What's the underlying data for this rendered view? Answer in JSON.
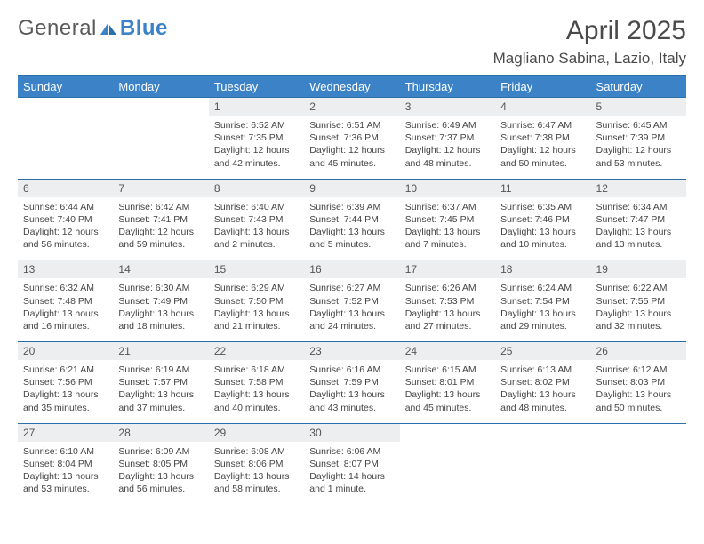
{
  "logo": {
    "text1": "General",
    "text2": "Blue"
  },
  "title": "April 2025",
  "location": "Magliano Sabina, Lazio, Italy",
  "colors": {
    "header_bg": "#3b82c7",
    "header_text": "#ffffff",
    "border": "#2b6fa8",
    "daynum_bg": "#eceeef",
    "text": "#444444",
    "title_text": "#4a4a4a"
  },
  "typography": {
    "title_size": 30,
    "location_size": 17,
    "dayhead_size": 13,
    "daynum_size": 12,
    "body_size": 10.5
  },
  "day_names": [
    "Sunday",
    "Monday",
    "Tuesday",
    "Wednesday",
    "Thursday",
    "Friday",
    "Saturday"
  ],
  "weeks": [
    [
      {
        "n": "",
        "sunrise": "",
        "sunset": "",
        "daylight": ""
      },
      {
        "n": "",
        "sunrise": "",
        "sunset": "",
        "daylight": ""
      },
      {
        "n": "1",
        "sunrise": "Sunrise: 6:52 AM",
        "sunset": "Sunset: 7:35 PM",
        "daylight": "Daylight: 12 hours and 42 minutes."
      },
      {
        "n": "2",
        "sunrise": "Sunrise: 6:51 AM",
        "sunset": "Sunset: 7:36 PM",
        "daylight": "Daylight: 12 hours and 45 minutes."
      },
      {
        "n": "3",
        "sunrise": "Sunrise: 6:49 AM",
        "sunset": "Sunset: 7:37 PM",
        "daylight": "Daylight: 12 hours and 48 minutes."
      },
      {
        "n": "4",
        "sunrise": "Sunrise: 6:47 AM",
        "sunset": "Sunset: 7:38 PM",
        "daylight": "Daylight: 12 hours and 50 minutes."
      },
      {
        "n": "5",
        "sunrise": "Sunrise: 6:45 AM",
        "sunset": "Sunset: 7:39 PM",
        "daylight": "Daylight: 12 hours and 53 minutes."
      }
    ],
    [
      {
        "n": "6",
        "sunrise": "Sunrise: 6:44 AM",
        "sunset": "Sunset: 7:40 PM",
        "daylight": "Daylight: 12 hours and 56 minutes."
      },
      {
        "n": "7",
        "sunrise": "Sunrise: 6:42 AM",
        "sunset": "Sunset: 7:41 PM",
        "daylight": "Daylight: 12 hours and 59 minutes."
      },
      {
        "n": "8",
        "sunrise": "Sunrise: 6:40 AM",
        "sunset": "Sunset: 7:43 PM",
        "daylight": "Daylight: 13 hours and 2 minutes."
      },
      {
        "n": "9",
        "sunrise": "Sunrise: 6:39 AM",
        "sunset": "Sunset: 7:44 PM",
        "daylight": "Daylight: 13 hours and 5 minutes."
      },
      {
        "n": "10",
        "sunrise": "Sunrise: 6:37 AM",
        "sunset": "Sunset: 7:45 PM",
        "daylight": "Daylight: 13 hours and 7 minutes."
      },
      {
        "n": "11",
        "sunrise": "Sunrise: 6:35 AM",
        "sunset": "Sunset: 7:46 PM",
        "daylight": "Daylight: 13 hours and 10 minutes."
      },
      {
        "n": "12",
        "sunrise": "Sunrise: 6:34 AM",
        "sunset": "Sunset: 7:47 PM",
        "daylight": "Daylight: 13 hours and 13 minutes."
      }
    ],
    [
      {
        "n": "13",
        "sunrise": "Sunrise: 6:32 AM",
        "sunset": "Sunset: 7:48 PM",
        "daylight": "Daylight: 13 hours and 16 minutes."
      },
      {
        "n": "14",
        "sunrise": "Sunrise: 6:30 AM",
        "sunset": "Sunset: 7:49 PM",
        "daylight": "Daylight: 13 hours and 18 minutes."
      },
      {
        "n": "15",
        "sunrise": "Sunrise: 6:29 AM",
        "sunset": "Sunset: 7:50 PM",
        "daylight": "Daylight: 13 hours and 21 minutes."
      },
      {
        "n": "16",
        "sunrise": "Sunrise: 6:27 AM",
        "sunset": "Sunset: 7:52 PM",
        "daylight": "Daylight: 13 hours and 24 minutes."
      },
      {
        "n": "17",
        "sunrise": "Sunrise: 6:26 AM",
        "sunset": "Sunset: 7:53 PM",
        "daylight": "Daylight: 13 hours and 27 minutes."
      },
      {
        "n": "18",
        "sunrise": "Sunrise: 6:24 AM",
        "sunset": "Sunset: 7:54 PM",
        "daylight": "Daylight: 13 hours and 29 minutes."
      },
      {
        "n": "19",
        "sunrise": "Sunrise: 6:22 AM",
        "sunset": "Sunset: 7:55 PM",
        "daylight": "Daylight: 13 hours and 32 minutes."
      }
    ],
    [
      {
        "n": "20",
        "sunrise": "Sunrise: 6:21 AM",
        "sunset": "Sunset: 7:56 PM",
        "daylight": "Daylight: 13 hours and 35 minutes."
      },
      {
        "n": "21",
        "sunrise": "Sunrise: 6:19 AM",
        "sunset": "Sunset: 7:57 PM",
        "daylight": "Daylight: 13 hours and 37 minutes."
      },
      {
        "n": "22",
        "sunrise": "Sunrise: 6:18 AM",
        "sunset": "Sunset: 7:58 PM",
        "daylight": "Daylight: 13 hours and 40 minutes."
      },
      {
        "n": "23",
        "sunrise": "Sunrise: 6:16 AM",
        "sunset": "Sunset: 7:59 PM",
        "daylight": "Daylight: 13 hours and 43 minutes."
      },
      {
        "n": "24",
        "sunrise": "Sunrise: 6:15 AM",
        "sunset": "Sunset: 8:01 PM",
        "daylight": "Daylight: 13 hours and 45 minutes."
      },
      {
        "n": "25",
        "sunrise": "Sunrise: 6:13 AM",
        "sunset": "Sunset: 8:02 PM",
        "daylight": "Daylight: 13 hours and 48 minutes."
      },
      {
        "n": "26",
        "sunrise": "Sunrise: 6:12 AM",
        "sunset": "Sunset: 8:03 PM",
        "daylight": "Daylight: 13 hours and 50 minutes."
      }
    ],
    [
      {
        "n": "27",
        "sunrise": "Sunrise: 6:10 AM",
        "sunset": "Sunset: 8:04 PM",
        "daylight": "Daylight: 13 hours and 53 minutes."
      },
      {
        "n": "28",
        "sunrise": "Sunrise: 6:09 AM",
        "sunset": "Sunset: 8:05 PM",
        "daylight": "Daylight: 13 hours and 56 minutes."
      },
      {
        "n": "29",
        "sunrise": "Sunrise: 6:08 AM",
        "sunset": "Sunset: 8:06 PM",
        "daylight": "Daylight: 13 hours and 58 minutes."
      },
      {
        "n": "30",
        "sunrise": "Sunrise: 6:06 AM",
        "sunset": "Sunset: 8:07 PM",
        "daylight": "Daylight: 14 hours and 1 minute."
      },
      {
        "n": "",
        "sunrise": "",
        "sunset": "",
        "daylight": ""
      },
      {
        "n": "",
        "sunrise": "",
        "sunset": "",
        "daylight": ""
      },
      {
        "n": "",
        "sunrise": "",
        "sunset": "",
        "daylight": ""
      }
    ]
  ]
}
